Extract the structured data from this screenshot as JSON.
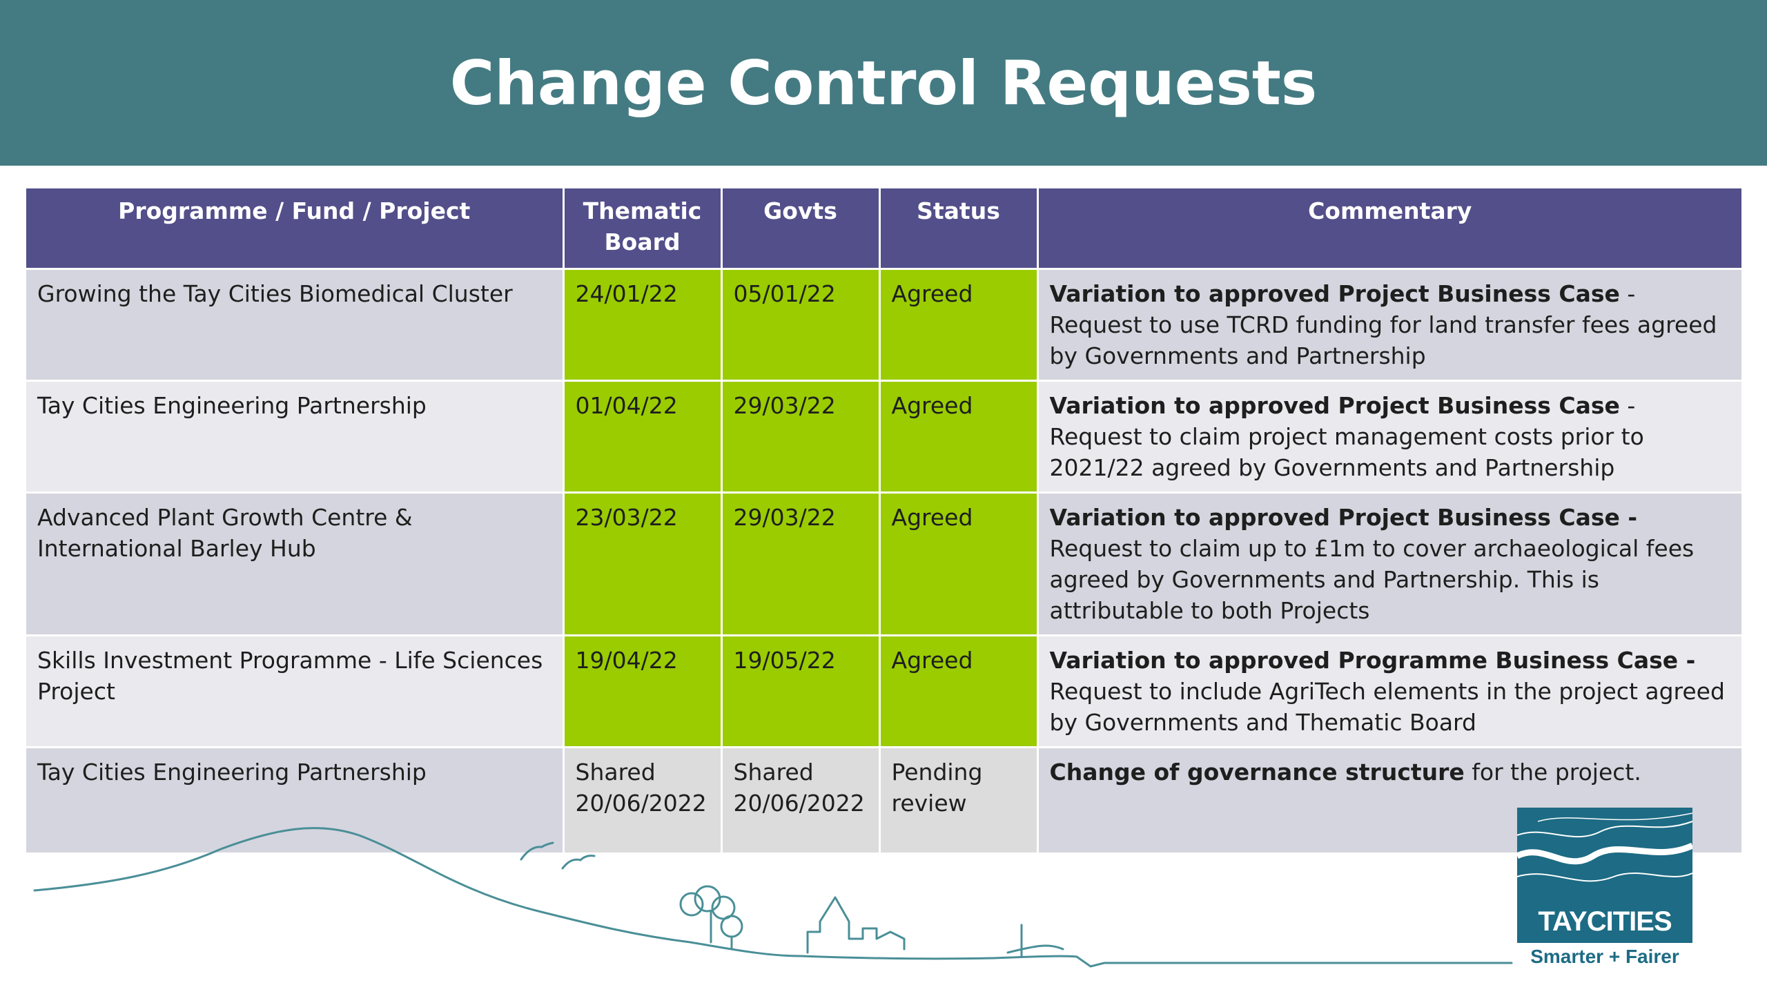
{
  "title": "Change Control Requests",
  "colors": {
    "header_bg": "#447b82",
    "table_header_bg": "#524f8a",
    "agreed_green": "#9acc00",
    "row_dark": "#d5d5df",
    "row_light": "#e9e9ee",
    "logo_blue": "#1d6b84"
  },
  "table": {
    "headers": [
      "Programme / Fund / Project",
      "Thematic Board",
      "Govts",
      "Status",
      "Commentary"
    ],
    "rows": [
      {
        "project": "Growing the Tay Cities Biomedical Cluster",
        "thematic_board": "24/01/22",
        "govts": "05/01/22",
        "status": "Agreed",
        "commentary_bold": "Variation to approved Project Business Case",
        "commentary_rest": " - Request to use TCRD funding for land transfer fees agreed by Governments and Partnership"
      },
      {
        "project": "Tay Cities Engineering Partnership",
        "thematic_board": "01/04/22",
        "govts": "29/03/22",
        "status": "Agreed",
        "commentary_bold": "Variation to approved Project Business Case",
        "commentary_rest": " - Request to claim project management costs prior to 2021/22 agreed by Governments and Partnership"
      },
      {
        "project": "Advanced Plant Growth Centre & International Barley Hub",
        "thematic_board": "23/03/22",
        "govts": "29/03/22",
        "status": "Agreed",
        "commentary_bold": "Variation to approved Project Business Case -",
        "commentary_rest": " Request to claim up to £1m to cover archaeological fees agreed by Governments and Partnership. This is attributable to both Projects"
      },
      {
        "project": "Skills Investment Programme - Life Sciences Project",
        "thematic_board": "19/04/22",
        "govts": "19/05/22",
        "status": "Agreed",
        "commentary_bold": "Variation to approved Programme Business Case -",
        "commentary_rest": " Request to include AgriTech elements in the project agreed by Governments and Thematic Board"
      },
      {
        "project": "Tay Cities Engineering Partnership",
        "thematic_board": "Shared 20/06/2022",
        "govts": "Shared 20/06/2022",
        "status": "Pending review",
        "commentary_bold": "Change of governance structure",
        "commentary_rest": " for the project."
      }
    ]
  },
  "logo": {
    "name": "TAYCITIES",
    "tagline": "Smarter + Fairer"
  }
}
